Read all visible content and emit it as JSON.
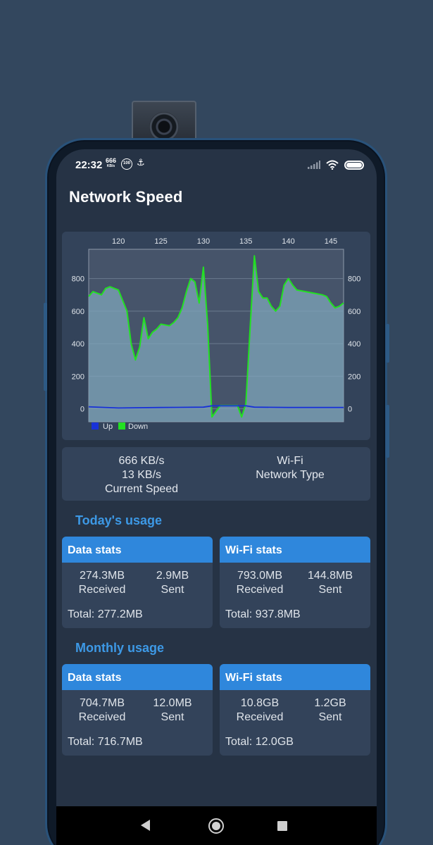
{
  "status_bar": {
    "time": "22:32",
    "speed_value": "666",
    "speed_unit": "KB/s",
    "battery_badge": "100"
  },
  "app": {
    "title": "Network Speed"
  },
  "chart_data": {
    "type": "area",
    "x_ticks": [
      "120",
      "125",
      "130",
      "135",
      "140",
      "145"
    ],
    "y_ticks": [
      "0",
      "200",
      "400",
      "600",
      "800"
    ],
    "xlim": [
      116.5,
      146.5
    ],
    "ylim": [
      -80,
      980
    ],
    "grid": true,
    "legend_position": "bottom-left",
    "series": [
      {
        "name": "Up",
        "color": "#1832d8",
        "x": [
          116.5,
          120,
          125,
          130,
          131,
          135,
          136,
          140,
          146.5
        ],
        "y": [
          12,
          5,
          8,
          10,
          18,
          18,
          10,
          8,
          8
        ]
      },
      {
        "name": "Down",
        "color": "#22e022",
        "x": [
          116.5,
          117,
          118,
          118.5,
          119,
          120,
          121,
          121.5,
          122,
          122.5,
          123,
          123.5,
          124,
          124.5,
          125,
          126,
          126.5,
          127,
          127.5,
          128,
          128.5,
          129,
          129.5,
          130,
          130.5,
          131,
          132,
          133,
          134,
          134.5,
          135,
          135.5,
          136,
          136.5,
          137,
          137.5,
          138,
          138.5,
          139,
          139.5,
          140,
          140.5,
          141,
          142,
          143,
          144,
          144.5,
          145,
          145.5,
          146,
          146.5
        ],
        "y": [
          690,
          720,
          700,
          740,
          750,
          730,
          600,
          400,
          300,
          380,
          560,
          430,
          470,
          490,
          520,
          510,
          530,
          560,
          620,
          720,
          800,
          780,
          650,
          870,
          520,
          -50,
          20,
          20,
          20,
          -50,
          30,
          500,
          940,
          720,
          680,
          680,
          630,
          600,
          630,
          760,
          800,
          760,
          730,
          720,
          710,
          700,
          690,
          650,
          620,
          630,
          650
        ]
      }
    ]
  },
  "current_speed": {
    "download": "666 KB/s",
    "upload": "13 KB/s",
    "label": "Current Speed",
    "network_type": "Wi-Fi",
    "network_type_label": "Network Type"
  },
  "today": {
    "heading": "Today's usage",
    "data": {
      "title": "Data stats",
      "received": "274.3MB",
      "received_label": "Received",
      "sent": "2.9MB",
      "sent_label": "Sent",
      "total": "Total: 277.2MB"
    },
    "wifi": {
      "title": "Wi-Fi stats",
      "received": "793.0MB",
      "received_label": "Received",
      "sent": "144.8MB",
      "sent_label": "Sent",
      "total": "Total: 937.8MB"
    }
  },
  "monthly": {
    "heading": "Monthly usage",
    "data": {
      "title": "Data stats",
      "received": "704.7MB",
      "received_label": "Received",
      "sent": "12.0MB",
      "sent_label": "Sent",
      "total": "Total: 716.7MB"
    },
    "wifi": {
      "title": "Wi-Fi stats",
      "received": "10.8GB",
      "received_label": "Received",
      "sent": "1.2GB",
      "sent_label": "Sent",
      "total": "Total: 12.0GB"
    }
  },
  "icons": {
    "status": [
      "signal-icon",
      "wifi-icon",
      "battery-icon",
      "data-saver-icon"
    ],
    "nav": [
      "back-icon",
      "home-icon",
      "recents-icon"
    ]
  },
  "colors": {
    "background": "#33475e",
    "screen": "#263345",
    "card": "#33435a",
    "accent": "#2f87dc",
    "heading_blue": "#3d99e6"
  }
}
